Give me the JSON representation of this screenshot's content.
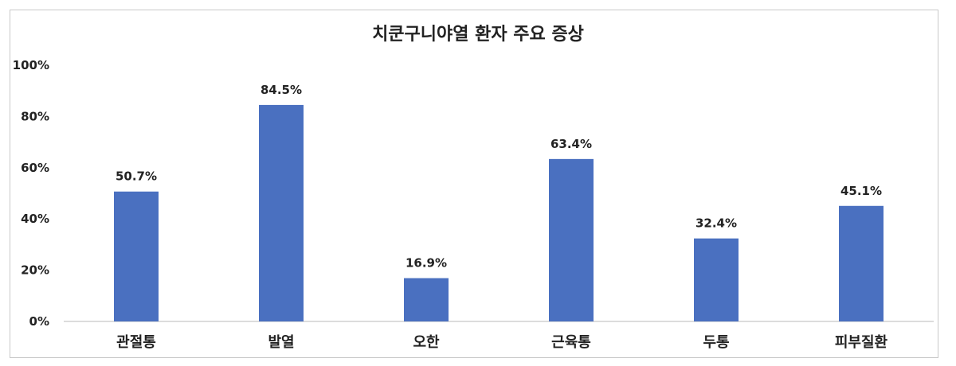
{
  "chart_data": {
    "type": "bar",
    "title": "치쿤구니야열 환자 주요 증상",
    "categories": [
      "관절통",
      "발열",
      "오한",
      "근육통",
      "두통",
      "피부질환"
    ],
    "values": [
      50.7,
      84.5,
      16.9,
      63.4,
      32.4,
      45.1
    ],
    "data_labels": [
      "50.7%",
      "84.5%",
      "16.9%",
      "63.4%",
      "32.4%",
      "45.1%"
    ],
    "yticks": [
      0,
      20,
      40,
      60,
      80,
      100
    ],
    "ytick_labels": [
      "0%",
      "20%",
      "40%",
      "60%",
      "80%",
      "100%"
    ],
    "ylim": [
      0,
      100
    ],
    "xlabel": "",
    "ylabel": "",
    "grid": false,
    "legend": "none",
    "bar_color": "#4a70c0"
  }
}
